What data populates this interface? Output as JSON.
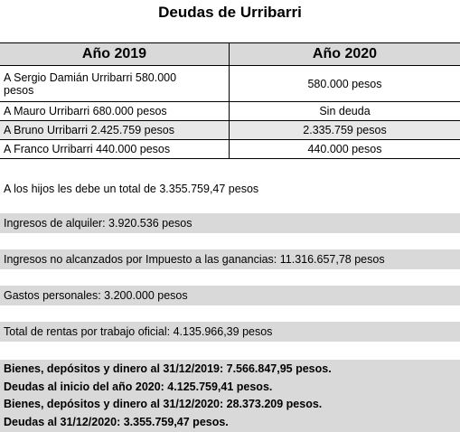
{
  "title": "Deudas de Urribarri",
  "table": {
    "header": [
      "Año 2019",
      "Año 2020"
    ],
    "rows": [
      [
        "A Sergio Damián Urribarri  580.000 pesos",
        "580.000 pesos"
      ],
      [
        "A Mauro Urribarri 680.000 pesos",
        "Sin deuda"
      ],
      [
        "A Bruno Urribarri 2.425.759 pesos",
        "2.335.759 pesos"
      ],
      [
        "A Franco Urribarri 440.000 pesos",
        "440.000 pesos"
      ]
    ]
  },
  "summary": "A los hijos les debe un total de 3.355.759,47 pesos",
  "items": [
    "Ingresos de alquiler: 3.920.536 pesos",
    "Ingresos no alcanzados por Impuesto a las ganancias: 11.316.657,78 pesos",
    "Gastos personales: 3.200.000 pesos",
    "Total de rentas por trabajo oficial: 4.135.966,39 pesos"
  ],
  "highlights": [
    "Bienes, depósitos y dinero al 31/12/2019: 7.566.847,95 pesos.",
    "Deudas al inicio del año 2020: 4.125.759,41 pesos.",
    "Bienes, depósitos y dinero al 31/12/2020: 28.373.209 pesos.",
    "Deudas al 31/12/2020: 3.355.759,47 pesos."
  ]
}
